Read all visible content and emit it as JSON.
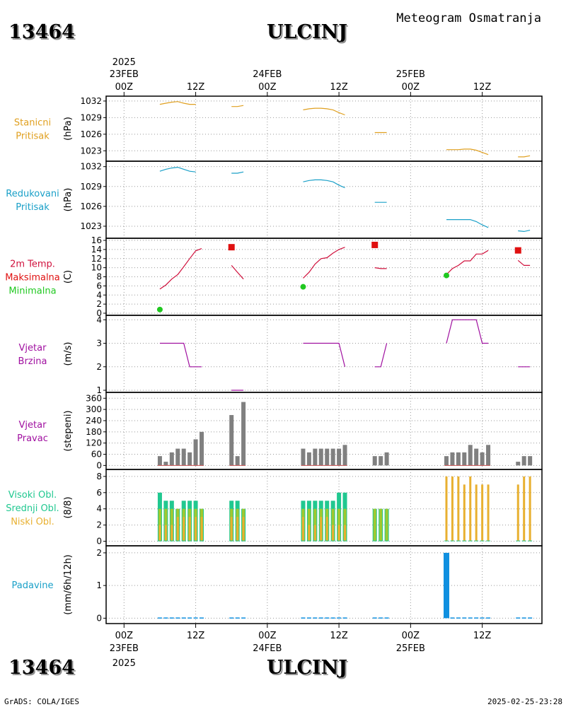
{
  "header": {
    "station_id": "13464",
    "station_name": "ULCINJ",
    "product": "Meteogram Osmatranja"
  },
  "footer": {
    "credit": "GrADS: COLA/IGES",
    "timestamp": "2025-02-25-23:28"
  },
  "time_axis": {
    "year": "2025",
    "ticks": [
      {
        "h": 0,
        "label": "00Z"
      },
      {
        "h": 12,
        "label": "12Z"
      },
      {
        "h": 24,
        "label": "00Z"
      },
      {
        "h": 36,
        "label": "12Z"
      },
      {
        "h": 48,
        "label": "00Z"
      },
      {
        "h": 60,
        "label": "12Z"
      }
    ],
    "dates": [
      {
        "h": 0,
        "label": "23FEB"
      },
      {
        "h": 24,
        "label": "24FEB"
      },
      {
        "h": 48,
        "label": "25FEB"
      }
    ],
    "range_hours": [
      -3,
      70
    ]
  },
  "colors": {
    "station_pressure": "#e0a020",
    "reduced_pressure": "#1aa0c8",
    "tmax": "#e01010",
    "tmin": "#20c820",
    "temp_line": "#d0103c",
    "wind": "#a010a0",
    "direction": "#808080",
    "direction_base": "#c85050",
    "high_cloud": "#20c890",
    "mid_cloud": "#a0c830",
    "low_cloud": "#e8b030",
    "precip": "#1090e0",
    "title_shadow": "#808080"
  },
  "chart_data": [
    {
      "id": "station-pressure",
      "type": "line",
      "label_lines": [
        "Stanicni",
        "Pritisak"
      ],
      "label_color": "#e0a020",
      "unit": "(hPa)",
      "ylim": [
        1021.5,
        1032.5
      ],
      "yticks": [
        1023,
        1026,
        1029,
        1032
      ],
      "grid": true,
      "segments": [
        {
          "x": [
            6,
            7,
            8,
            9,
            10,
            11,
            12
          ],
          "y": [
            1031.4,
            1031.6,
            1031.8,
            1031.9,
            1031.6,
            1031.4,
            1031.4
          ]
        },
        {
          "x": [
            18,
            19,
            20
          ],
          "y": [
            1031.0,
            1031.0,
            1031.2
          ]
        },
        {
          "x": [
            30,
            31,
            32,
            33,
            34,
            35,
            36,
            37
          ],
          "y": [
            1030.4,
            1030.6,
            1030.7,
            1030.7,
            1030.6,
            1030.4,
            1029.9,
            1029.5
          ]
        },
        {
          "x": [
            42,
            43,
            44
          ],
          "y": [
            1026.3,
            1026.3,
            1026.3
          ]
        },
        {
          "x": [
            54,
            55,
            56,
            57,
            58,
            59,
            60,
            61
          ],
          "y": [
            1023.2,
            1023.2,
            1023.2,
            1023.3,
            1023.3,
            1023.1,
            1022.7,
            1022.3
          ]
        },
        {
          "x": [
            66,
            67,
            68
          ],
          "y": [
            1021.9,
            1021.9,
            1022.1
          ]
        }
      ]
    },
    {
      "id": "reduced-pressure",
      "type": "line",
      "label_lines": [
        "Redukovani",
        "Pritisak"
      ],
      "label_color": "#1aa0c8",
      "unit": "(hPa)",
      "ylim": [
        1021.5,
        1032.5
      ],
      "yticks": [
        1023,
        1026,
        1029,
        1032
      ],
      "grid": true,
      "segments": [
        {
          "x": [
            6,
            7,
            8,
            9,
            10,
            11,
            12
          ],
          "y": [
            1031.3,
            1031.6,
            1031.8,
            1031.9,
            1031.6,
            1031.3,
            1031.2
          ]
        },
        {
          "x": [
            18,
            19,
            20
          ],
          "y": [
            1031.0,
            1031.0,
            1031.2
          ]
        },
        {
          "x": [
            30,
            31,
            32,
            33,
            34,
            35,
            36,
            37
          ],
          "y": [
            1029.7,
            1029.9,
            1030.0,
            1030.0,
            1029.9,
            1029.7,
            1029.2,
            1028.8
          ]
        },
        {
          "x": [
            42,
            43,
            44
          ],
          "y": [
            1026.6,
            1026.6,
            1026.6
          ]
        },
        {
          "x": [
            54,
            55,
            56,
            57,
            58,
            59,
            60,
            61
          ],
          "y": [
            1024.0,
            1024.0,
            1024.0,
            1024.0,
            1024.0,
            1023.7,
            1023.2,
            1022.8
          ]
        },
        {
          "x": [
            66,
            67,
            68
          ],
          "y": [
            1022.3,
            1022.2,
            1022.4
          ]
        }
      ]
    },
    {
      "id": "temperature",
      "type": "line+scatter",
      "label_lines": [
        "2m Temp.",
        "Maksimalna",
        "Minimalna"
      ],
      "label_colors": [
        "#d0103c",
        "#e01010",
        "#20c820"
      ],
      "unit": "(C)",
      "ylim": [
        0,
        16
      ],
      "yticks": [
        0,
        2,
        4,
        6,
        8,
        10,
        12,
        14,
        16
      ],
      "grid": true,
      "segments": [
        {
          "x": [
            6,
            7,
            8,
            9,
            10,
            11,
            12,
            13
          ],
          "y": [
            5.3,
            6.2,
            7.5,
            8.5,
            10.2,
            12.0,
            13.7,
            14.2
          ]
        },
        {
          "x": [
            18,
            19,
            20
          ],
          "y": [
            10.5,
            9.0,
            7.5
          ]
        },
        {
          "x": [
            30,
            31,
            32,
            33,
            34,
            35,
            36,
            37
          ],
          "y": [
            7.7,
            9.0,
            10.8,
            12.0,
            12.2,
            13.2,
            14.0,
            14.5
          ]
        },
        {
          "x": [
            42,
            43,
            44
          ],
          "y": [
            10.0,
            9.8,
            9.8
          ]
        },
        {
          "x": [
            54,
            55,
            56,
            57,
            58,
            59,
            60,
            61
          ],
          "y": [
            8.5,
            9.8,
            10.5,
            11.5,
            11.5,
            13.0,
            13.0,
            13.8
          ]
        },
        {
          "x": [
            66,
            67,
            68
          ],
          "y": [
            11.6,
            10.5,
            10.5
          ]
        }
      ],
      "tmax": [
        {
          "x": 18,
          "y": 14.5
        },
        {
          "x": 42,
          "y": 15.0
        },
        {
          "x": 66,
          "y": 13.8
        }
      ],
      "tmin": [
        {
          "x": 6,
          "y": 0.8
        },
        {
          "x": 30,
          "y": 5.8
        },
        {
          "x": 54,
          "y": 8.3
        }
      ]
    },
    {
      "id": "wind-speed",
      "type": "line",
      "label_lines": [
        "Vjetar",
        "Brzina"
      ],
      "label_color": "#a010a0",
      "unit": "(m/s)",
      "ylim": [
        1,
        4.1
      ],
      "yticks": [
        1,
        2,
        3,
        4
      ],
      "grid": true,
      "segments": [
        {
          "x": [
            6,
            7,
            8,
            9,
            10,
            11,
            12,
            13
          ],
          "y": [
            3,
            3,
            3,
            3,
            3,
            2,
            2,
            2
          ]
        },
        {
          "x": [
            18,
            19,
            20
          ],
          "y": [
            1,
            1,
            1
          ]
        },
        {
          "x": [
            30,
            31,
            32,
            33,
            34,
            35,
            36,
            37
          ],
          "y": [
            3,
            3,
            3,
            3,
            3,
            3,
            3,
            2
          ]
        },
        {
          "x": [
            42,
            43,
            44
          ],
          "y": [
            2,
            2,
            3
          ]
        },
        {
          "x": [
            54,
            55,
            56,
            57,
            58,
            59,
            60,
            61
          ],
          "y": [
            3,
            4,
            4,
            4,
            4,
            4,
            3,
            3
          ]
        },
        {
          "x": [
            66,
            67,
            68
          ],
          "y": [
            2,
            2,
            2
          ]
        }
      ]
    },
    {
      "id": "wind-direction",
      "type": "bar",
      "label_lines": [
        "Vjetar",
        "Pravac"
      ],
      "label_color": "#a010a0",
      "unit": "(stepeni)",
      "ylim": [
        -10,
        380
      ],
      "yticks": [
        0,
        60,
        120,
        180,
        240,
        300,
        360
      ],
      "grid": true,
      "x": [
        6,
        7,
        8,
        9,
        10,
        11,
        12,
        13,
        18,
        19,
        20,
        30,
        31,
        32,
        33,
        34,
        35,
        36,
        37,
        42,
        43,
        44,
        54,
        55,
        56,
        57,
        58,
        59,
        60,
        61,
        66,
        67,
        68
      ],
      "values": [
        50,
        20,
        70,
        90,
        90,
        70,
        140,
        180,
        270,
        50,
        340,
        90,
        70,
        90,
        90,
        90,
        90,
        90,
        110,
        50,
        50,
        70,
        50,
        70,
        70,
        70,
        110,
        90,
        70,
        110,
        20,
        50,
        50
      ]
    },
    {
      "id": "clouds",
      "type": "bar",
      "label_lines": [
        "Visoki Obl.",
        "Srednji Obl.",
        "Niski Obl."
      ],
      "label_colors": [
        "#20c890",
        "#20c890",
        "#e8b030"
      ],
      "unit": "(8/8)",
      "ylim": [
        -0.3,
        8.6
      ],
      "yticks": [
        0,
        2,
        4,
        6,
        8
      ],
      "grid": true,
      "x": [
        6,
        7,
        8,
        9,
        10,
        11,
        12,
        13,
        18,
        19,
        20,
        30,
        31,
        32,
        33,
        34,
        35,
        36,
        37,
        42,
        43,
        44,
        54,
        55,
        56,
        57,
        58,
        59,
        60,
        61,
        66,
        67,
        68
      ],
      "series": [
        {
          "name": "Visoki Obl.",
          "values": [
            6,
            5,
            5,
            4,
            5,
            5,
            5,
            4,
            5,
            5,
            4,
            5,
            5,
            5,
            5,
            5,
            5,
            6,
            6,
            4,
            4,
            4,
            0,
            0,
            0,
            0,
            0,
            0,
            0,
            0,
            0,
            0,
            0
          ]
        },
        {
          "name": "Srednji Obl.",
          "values": [
            4,
            4,
            4,
            4,
            4,
            4,
            4,
            4,
            4,
            4,
            4,
            4,
            4,
            4,
            4,
            4,
            4,
            4,
            4,
            4,
            4,
            4,
            0,
            0,
            0,
            0,
            0,
            0,
            0,
            0,
            0,
            0,
            0
          ]
        },
        {
          "name": "Niski Obl.",
          "values": [
            2,
            2,
            2,
            3,
            3,
            3,
            3,
            3,
            3,
            3,
            3,
            3,
            2,
            2,
            3,
            3,
            2,
            2,
            2,
            0,
            0,
            0,
            8,
            8,
            8,
            7,
            8,
            7,
            7,
            7,
            7,
            8,
            8
          ]
        }
      ]
    },
    {
      "id": "precipitation",
      "type": "bar",
      "label_lines": [
        "Padavine"
      ],
      "label_color": "#1aa0c8",
      "unit": "(mm/6h/12h)",
      "ylim": [
        -0.1,
        2.15
      ],
      "yticks": [
        0,
        1,
        2
      ],
      "grid": true,
      "x": [
        6,
        7,
        8,
        9,
        10,
        11,
        12,
        13,
        18,
        19,
        20,
        30,
        31,
        32,
        33,
        34,
        35,
        36,
        37,
        42,
        43,
        44,
        54,
        55,
        56,
        57,
        58,
        59,
        60,
        61,
        66,
        67,
        68
      ],
      "values": [
        0,
        0,
        0,
        0,
        0,
        0,
        0,
        0,
        0,
        0,
        0,
        0,
        0,
        0,
        0,
        0,
        0,
        0,
        0,
        0,
        0,
        0,
        2,
        0,
        0,
        0,
        0,
        0,
        0,
        0,
        0,
        0,
        0
      ]
    }
  ]
}
